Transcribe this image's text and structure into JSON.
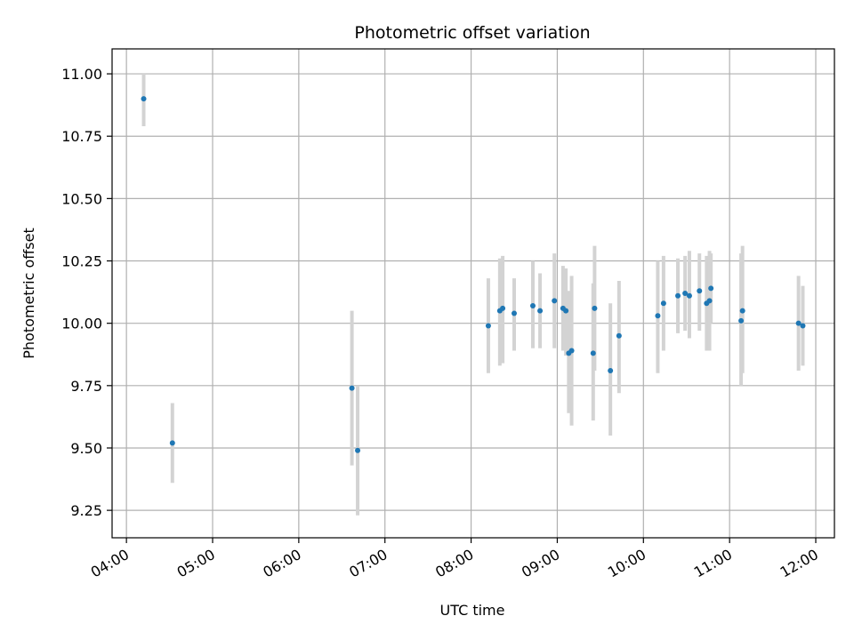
{
  "chart_data": {
    "type": "scatter",
    "title": "Photometric offset variation",
    "xlabel": "UTC time",
    "ylabel": "Photometric offset",
    "xlim": [
      "03:50",
      "12:13"
    ],
    "ylim": [
      9.14,
      11.1
    ],
    "grid": true,
    "x_ticks": [
      "04:00",
      "05:00",
      "06:00",
      "07:00",
      "08:00",
      "09:00",
      "10:00",
      "11:00",
      "12:00"
    ],
    "y_ticks": [
      "9.25",
      "9.50",
      "9.75",
      "10.00",
      "10.25",
      "10.50",
      "10.75",
      "11.00"
    ],
    "series": [
      {
        "marker_color": "#1f77b4",
        "errorbar_color": "#d3d3d3",
        "points": [
          {
            "x": "04:12",
            "y": 10.9,
            "lo": 10.79,
            "hi": 11.0
          },
          {
            "x": "04:32",
            "y": 9.52,
            "lo": 9.36,
            "hi": 9.68
          },
          {
            "x": "06:37",
            "y": 9.74,
            "lo": 9.43,
            "hi": 10.05
          },
          {
            "x": "06:41",
            "y": 9.49,
            "lo": 9.23,
            "hi": 9.75
          },
          {
            "x": "08:12",
            "y": 9.99,
            "lo": 9.8,
            "hi": 10.18
          },
          {
            "x": "08:20",
            "y": 10.05,
            "lo": 9.83,
            "hi": 10.26
          },
          {
            "x": "08:22",
            "y": 10.06,
            "lo": 9.84,
            "hi": 10.27
          },
          {
            "x": "08:30",
            "y": 10.04,
            "lo": 9.89,
            "hi": 10.18
          },
          {
            "x": "08:43",
            "y": 10.07,
            "lo": 9.9,
            "hi": 10.25
          },
          {
            "x": "08:48",
            "y": 10.05,
            "lo": 9.9,
            "hi": 10.2
          },
          {
            "x": "08:58",
            "y": 10.09,
            "lo": 9.9,
            "hi": 10.28
          },
          {
            "x": "09:04",
            "y": 10.06,
            "lo": 9.89,
            "hi": 10.23
          },
          {
            "x": "09:06",
            "y": 10.05,
            "lo": 9.87,
            "hi": 10.22
          },
          {
            "x": "09:08",
            "y": 9.88,
            "lo": 9.64,
            "hi": 10.13
          },
          {
            "x": "09:10",
            "y": 9.89,
            "lo": 9.59,
            "hi": 10.19
          },
          {
            "x": "09:25",
            "y": 9.88,
            "lo": 9.61,
            "hi": 10.16
          },
          {
            "x": "09:26",
            "y": 10.06,
            "lo": 9.81,
            "hi": 10.31
          },
          {
            "x": "09:37",
            "y": 9.81,
            "lo": 9.55,
            "hi": 10.08
          },
          {
            "x": "09:43",
            "y": 9.95,
            "lo": 9.72,
            "hi": 10.17
          },
          {
            "x": "10:10",
            "y": 10.03,
            "lo": 9.8,
            "hi": 10.25
          },
          {
            "x": "10:14",
            "y": 10.08,
            "lo": 9.89,
            "hi": 10.27
          },
          {
            "x": "10:24",
            "y": 10.11,
            "lo": 9.96,
            "hi": 10.26
          },
          {
            "x": "10:29",
            "y": 10.12,
            "lo": 9.97,
            "hi": 10.27
          },
          {
            "x": "10:32",
            "y": 10.11,
            "lo": 9.94,
            "hi": 10.29
          },
          {
            "x": "10:39",
            "y": 10.13,
            "lo": 9.97,
            "hi": 10.28
          },
          {
            "x": "10:44",
            "y": 10.08,
            "lo": 9.89,
            "hi": 10.27
          },
          {
            "x": "10:46",
            "y": 10.09,
            "lo": 9.89,
            "hi": 10.29
          },
          {
            "x": "10:47",
            "y": 10.14,
            "lo": 10.0,
            "hi": 10.28
          },
          {
            "x": "11:08",
            "y": 10.01,
            "lo": 9.75,
            "hi": 10.28
          },
          {
            "x": "11:09",
            "y": 10.05,
            "lo": 9.8,
            "hi": 10.31
          },
          {
            "x": "11:48",
            "y": 10.0,
            "lo": 9.81,
            "hi": 10.19
          },
          {
            "x": "11:51",
            "y": 9.99,
            "lo": 9.83,
            "hi": 10.15
          }
        ]
      }
    ]
  }
}
